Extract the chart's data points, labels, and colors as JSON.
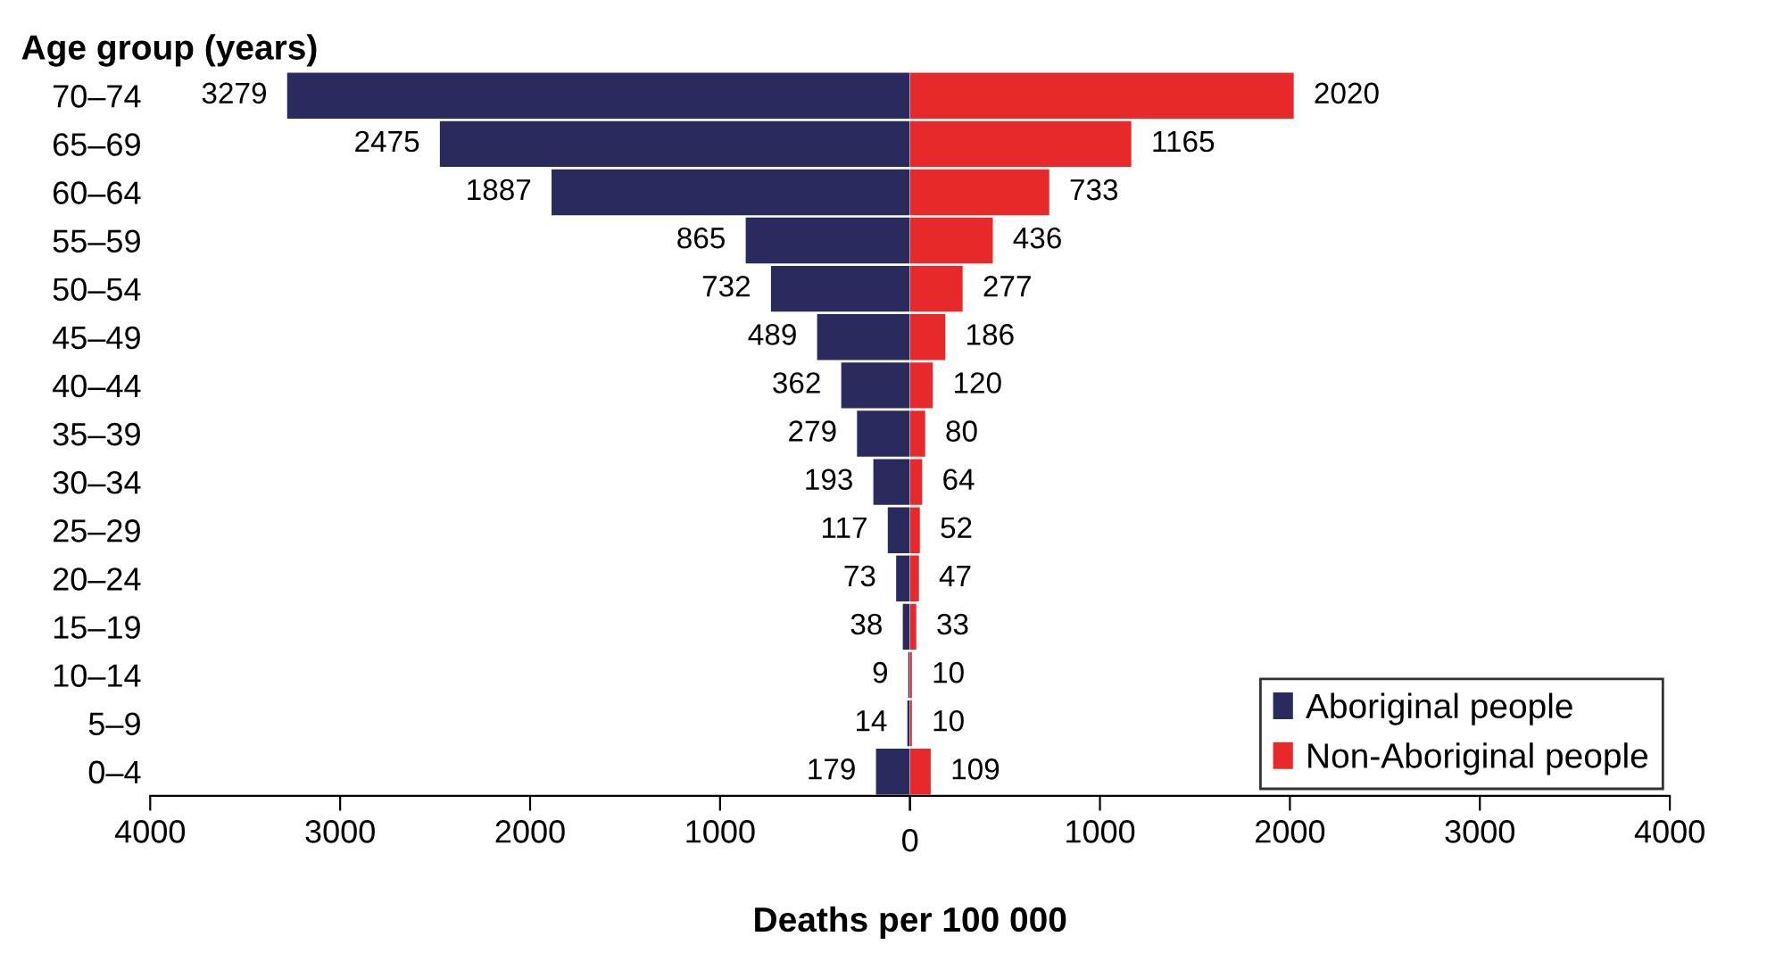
{
  "chart_data": [
    {
      "type": "bar",
      "orientation": "horizontal",
      "ylabel": "Age group (years)",
      "xlabel": "Deaths per 100 000",
      "categories": [
        "70–74",
        "65–69",
        "60–64",
        "55–59",
        "50–54",
        "45–49",
        "40–44",
        "35–39",
        "30–34",
        "25–29",
        "20–24",
        "15–19",
        "10–14",
        "5–9",
        "0–4"
      ],
      "series": [
        {
          "name": "Aboriginal people",
          "color": "#2b2a5e",
          "values": [
            3279,
            2475,
            1887,
            865,
            732,
            489,
            362,
            279,
            193,
            117,
            73,
            38,
            9,
            14,
            179
          ]
        }
      ],
      "data_labels": true,
      "xlim": [
        4000,
        0
      ],
      "xticks": [
        4000,
        3000,
        2000,
        1000,
        {
          "value": 0,
          "label": null
        }
      ],
      "grid": false
    },
    {
      "type": "bar",
      "orientation": "horizontal",
      "tick_labels": "x",
      "series": [
        {
          "name": "Non-Aboriginal people",
          "color": "#e8292b",
          "values": [
            2020,
            1165,
            733,
            436,
            277,
            186,
            120,
            80,
            64,
            52,
            47,
            33,
            10,
            10,
            109
          ]
        }
      ],
      "data_labels": true,
      "xlim": [
        0,
        4000
      ],
      "xticks": [
        0,
        1000,
        2000,
        3000,
        4000
      ],
      "legend": "bottom right",
      "grid": false
    }
  ]
}
